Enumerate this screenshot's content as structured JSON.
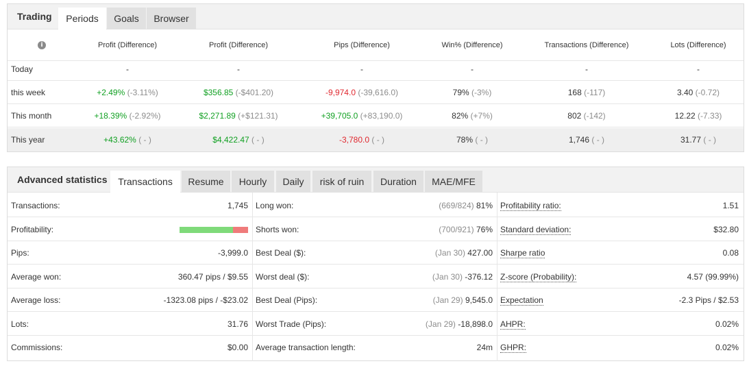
{
  "periods_panel": {
    "title": "Trading",
    "tabs": [
      "Periods",
      "Goals",
      "Browser"
    ],
    "columns": [
      "Profit (Difference)",
      "Profit (Difference)",
      "Pips (Difference)",
      "Win% (Difference)",
      "Transactions (Difference)",
      "Lots (Difference)"
    ],
    "rows": [
      {
        "label": "Today",
        "profit_pct": "-",
        "profit_pct_diff": "",
        "profit_usd": "-",
        "profit_usd_diff": "",
        "pips": "-",
        "pips_diff": "",
        "win": "-",
        "win_diff": "",
        "transactions": "-",
        "transactions_diff": "",
        "lots": "-",
        "lots_diff": ""
      },
      {
        "label": "this week",
        "profit_pct": "+2.49%",
        "profit_pct_diff": "(-3.11%)",
        "profit_usd": "$356.85",
        "profit_usd_diff": "(-$401.20)",
        "pips": "-9,974.0",
        "pips_diff": "(-39,616.0)",
        "win": "79%",
        "win_diff": "(-3%)",
        "transactions": "168",
        "transactions_diff": "(-117)",
        "lots": "3.40",
        "lots_diff": "(-0.72)"
      },
      {
        "label": "This month",
        "profit_pct": "+18.39%",
        "profit_pct_diff": "(-2.92%)",
        "profit_usd": "$2,271.89",
        "profit_usd_diff": "(+$121.31)",
        "pips": "+39,705.0",
        "pips_diff": "(+83,190.0)",
        "win": "82%",
        "win_diff": "(+7%)",
        "transactions": "802",
        "transactions_diff": "(-142)",
        "lots": "12.22",
        "lots_diff": "(-7.33)"
      },
      {
        "label": "This year",
        "profit_pct": "+43.62%",
        "profit_pct_diff": "( - )",
        "profit_usd": "$4,422.47",
        "profit_usd_diff": "( - )",
        "pips": "-3,780.0",
        "pips_diff": "( - )",
        "win": "78%",
        "win_diff": "( - )",
        "transactions": "1,746",
        "transactions_diff": "( - )",
        "lots": "31.77",
        "lots_diff": "( - )"
      }
    ]
  },
  "stats_panel": {
    "title": "Advanced statistics",
    "tabs": [
      "Transactions",
      "Resume",
      "Hourly",
      "Daily",
      "risk of ruin",
      "Duration",
      "MAE/MFE"
    ],
    "col1": [
      {
        "label": "Transactions:",
        "value": "1,745"
      },
      {
        "label": "Profitability:",
        "value": ""
      },
      {
        "label": "Pips:",
        "value": "-3,999.0"
      },
      {
        "label": "Average won:",
        "value": "360.47 pips / $9.55"
      },
      {
        "label": "Average loss:",
        "value": "-1323.08 pips / -$23.02"
      },
      {
        "label": "Lots:",
        "value": "31.76"
      },
      {
        "label": "Commissions:",
        "value": "$0.00"
      }
    ],
    "profitability_won_fraction": 0.78,
    "col2": [
      {
        "label": "Long won:",
        "sub": "(669/824)",
        "value": "81%"
      },
      {
        "label": "Shorts won:",
        "sub": "(700/921)",
        "value": "76%"
      },
      {
        "label": "Best Deal ($):",
        "sub": "(Jan 30)",
        "value": "427.00"
      },
      {
        "label": "Worst deal ($):",
        "sub": "(Jan 30)",
        "value": "-376.12"
      },
      {
        "label": "Best Deal (Pips):",
        "sub": "(Jan 29)",
        "value": "9,545.0"
      },
      {
        "label": "Worst Trade (Pips):",
        "sub": "(Jan 29)",
        "value": "-18,898.0"
      },
      {
        "label": "Average transaction length:",
        "sub": "",
        "value": "24m"
      }
    ],
    "col3": [
      {
        "label": "Profitability ratio:",
        "value": "1.51"
      },
      {
        "label": "Standard deviation:",
        "value": "$32.80"
      },
      {
        "label": "Sharpe ratio",
        "value": "0.08"
      },
      {
        "label": "Z-score (Probability):",
        "value": "4.57 (99.99%)"
      },
      {
        "label": "Expectation",
        "value": "-2.3 Pips / $2.53"
      },
      {
        "label": "AHPR:",
        "value": "0.02%"
      },
      {
        "label": "GHPR:",
        "value": "0.02%"
      }
    ]
  },
  "colors": {
    "positive": "#11a022",
    "negative": "#e0282f",
    "muted": "#8c8c8c",
    "bar_won": "#7fda7a",
    "bar_lost": "#ef7b7b"
  },
  "icons": {
    "info": "info-icon"
  }
}
